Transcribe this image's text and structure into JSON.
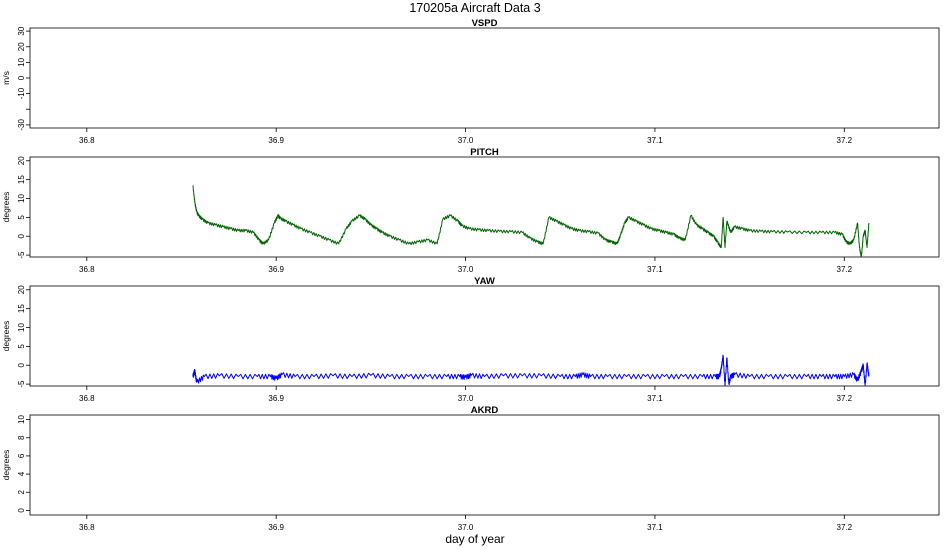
{
  "figure": {
    "title": "170205a   Aircraft Data 3",
    "xlabel": "day of year",
    "x_ticks": [
      "36.8",
      "36.9",
      "37.0",
      "37.1",
      "37.2"
    ]
  },
  "chart_data": [
    {
      "type": "line",
      "title": "VSPD",
      "ylabel": "m/s",
      "xlim": [
        36.77,
        37.25
      ],
      "ylim": [
        -32,
        32
      ],
      "y_ticks": [
        30,
        20,
        10,
        0,
        -10,
        -20,
        -30
      ],
      "y_tick_labels": [
        "30",
        "20",
        "10",
        "0",
        "-10",
        "",
        "-30"
      ],
      "color": "#000000",
      "series": []
    },
    {
      "type": "line",
      "title": "PITCH",
      "ylabel": "degrees",
      "xlim": [
        36.77,
        37.25
      ],
      "ylim": [
        -5.5,
        21
      ],
      "y_ticks": [
        20,
        15,
        10,
        5,
        0,
        -5
      ],
      "y_tick_labels": [
        "20",
        "15",
        "10",
        "5",
        "0",
        "-5"
      ],
      "color": "#006400",
      "series": [
        {
          "x": [
            36.856,
            36.857,
            36.858,
            36.859,
            36.861,
            36.864,
            36.868,
            36.872,
            36.876,
            36.88,
            36.884,
            36.888,
            36.891,
            36.893,
            36.896,
            36.899,
            36.901,
            36.902,
            36.905,
            36.909,
            36.913,
            36.918,
            36.923,
            36.928,
            36.933,
            36.937,
            36.94,
            36.944,
            36.947,
            36.95,
            36.953,
            36.956,
            36.96,
            36.965,
            36.97,
            36.975,
            36.98,
            36.985,
            36.988,
            36.992,
            36.996,
            36.998,
            37.002,
            37.007,
            37.012,
            37.018,
            37.024,
            37.03,
            37.034,
            37.038,
            37.041,
            37.044,
            37.048,
            37.052,
            37.056,
            37.06,
            37.065,
            37.07,
            37.074,
            37.077,
            37.08,
            37.082,
            37.084,
            37.086,
            37.09,
            37.094,
            37.098,
            37.102,
            37.106,
            37.11,
            37.113,
            37.116,
            37.119,
            37.122,
            37.125,
            37.128,
            37.131,
            37.133,
            37.135,
            37.136,
            37.137,
            37.138,
            37.14,
            37.142,
            37.146,
            37.15,
            37.156,
            37.162,
            37.17,
            37.18,
            37.188,
            37.195,
            37.199,
            37.201,
            37.203,
            37.205,
            37.207,
            37.208,
            37.209,
            37.21,
            37.211,
            37.212,
            37.213
          ],
          "y": [
            13.5,
            9.0,
            6.5,
            5.5,
            4.5,
            3.5,
            3.0,
            2.5,
            2.0,
            1.5,
            1.5,
            1.0,
            -1.0,
            -2.0,
            -1.0,
            3.5,
            5.5,
            4.8,
            4.0,
            3.0,
            2.0,
            1.0,
            0.0,
            -1.0,
            -2.0,
            2.0,
            4.0,
            5.5,
            4.5,
            3.0,
            2.0,
            1.0,
            0.0,
            -1.0,
            -2.0,
            -1.5,
            -1.0,
            -2.0,
            4.5,
            5.5,
            4.0,
            2.8,
            2.0,
            1.7,
            1.5,
            1.3,
            1.2,
            1.0,
            -0.5,
            -1.5,
            -2.0,
            5.0,
            4.0,
            3.0,
            2.0,
            1.5,
            1.2,
            0.8,
            -1.0,
            -1.5,
            -2.0,
            0.5,
            3.5,
            5.0,
            4.0,
            3.0,
            2.0,
            1.5,
            1.0,
            0.5,
            -0.5,
            -1.0,
            5.5,
            3.0,
            2.0,
            1.0,
            0.0,
            -1.5,
            -3.0,
            5.0,
            -3.0,
            4.0,
            1.0,
            2.5,
            2.0,
            1.5,
            1.3,
            1.2,
            1.1,
            1.0,
            1.0,
            1.0,
            0.5,
            -1.5,
            -2.0,
            -1.0,
            3.5,
            -3.0,
            -5.5,
            0.0,
            1.5,
            -3.0,
            3.5
          ]
        }
      ]
    },
    {
      "type": "line",
      "title": "YAW",
      "ylabel": "degrees",
      "xlim": [
        36.77,
        37.25
      ],
      "ylim": [
        -5.5,
        21
      ],
      "y_ticks": [
        20,
        15,
        10,
        5,
        0,
        -5
      ],
      "y_tick_labels": [
        "20",
        "15",
        "10",
        "5",
        "0",
        "-5"
      ],
      "color": "#0000ff",
      "series": [
        {
          "x": [
            36.856,
            36.857,
            36.858,
            36.862,
            36.87,
            36.88,
            36.89,
            36.897,
            36.9,
            36.903,
            36.91,
            36.92,
            36.93,
            36.94,
            36.95,
            36.96,
            36.97,
            36.98,
            36.99,
            36.997,
            37.0,
            37.003,
            37.01,
            37.02,
            37.03,
            37.04,
            37.05,
            37.058,
            37.062,
            37.066,
            37.075,
            37.085,
            37.095,
            37.105,
            37.115,
            37.125,
            37.132,
            37.134,
            37.135,
            37.136,
            37.137,
            37.138,
            37.139,
            37.14,
            37.142,
            37.15,
            37.16,
            37.17,
            37.18,
            37.188,
            37.195,
            37.2,
            37.205,
            37.207,
            37.209,
            37.21,
            37.211,
            37.212,
            37.213
          ],
          "y": [
            -3.0,
            -1.5,
            -4.5,
            -3.0,
            -2.8,
            -3.0,
            -3.0,
            -3.0,
            -3.5,
            -2.5,
            -3.0,
            -3.0,
            -2.8,
            -3.0,
            -2.7,
            -3.0,
            -3.0,
            -3.0,
            -3.0,
            -3.0,
            -3.2,
            -2.7,
            -3.0,
            -2.8,
            -2.8,
            -2.8,
            -3.0,
            -3.0,
            -2.5,
            -3.0,
            -3.0,
            -3.0,
            -3.0,
            -3.0,
            -3.0,
            -3.0,
            -3.0,
            -3.0,
            -1.0,
            2.5,
            -5.5,
            2.0,
            -5.0,
            -3.0,
            -2.5,
            -3.0,
            -3.0,
            -3.0,
            -3.0,
            -3.0,
            -3.0,
            -3.0,
            -2.5,
            -4.0,
            -1.5,
            0.0,
            -5.5,
            0.5,
            -3.0
          ]
        }
      ]
    },
    {
      "type": "line",
      "title": "AKRD",
      "ylabel": "degrees",
      "xlim": [
        36.77,
        37.25
      ],
      "ylim": [
        -0.5,
        10.5
      ],
      "y_ticks": [
        10,
        8,
        6,
        4,
        2,
        0
      ],
      "y_tick_labels": [
        "10",
        "8",
        "6",
        "4",
        "2",
        "0"
      ],
      "color": "#000000",
      "series": []
    }
  ]
}
